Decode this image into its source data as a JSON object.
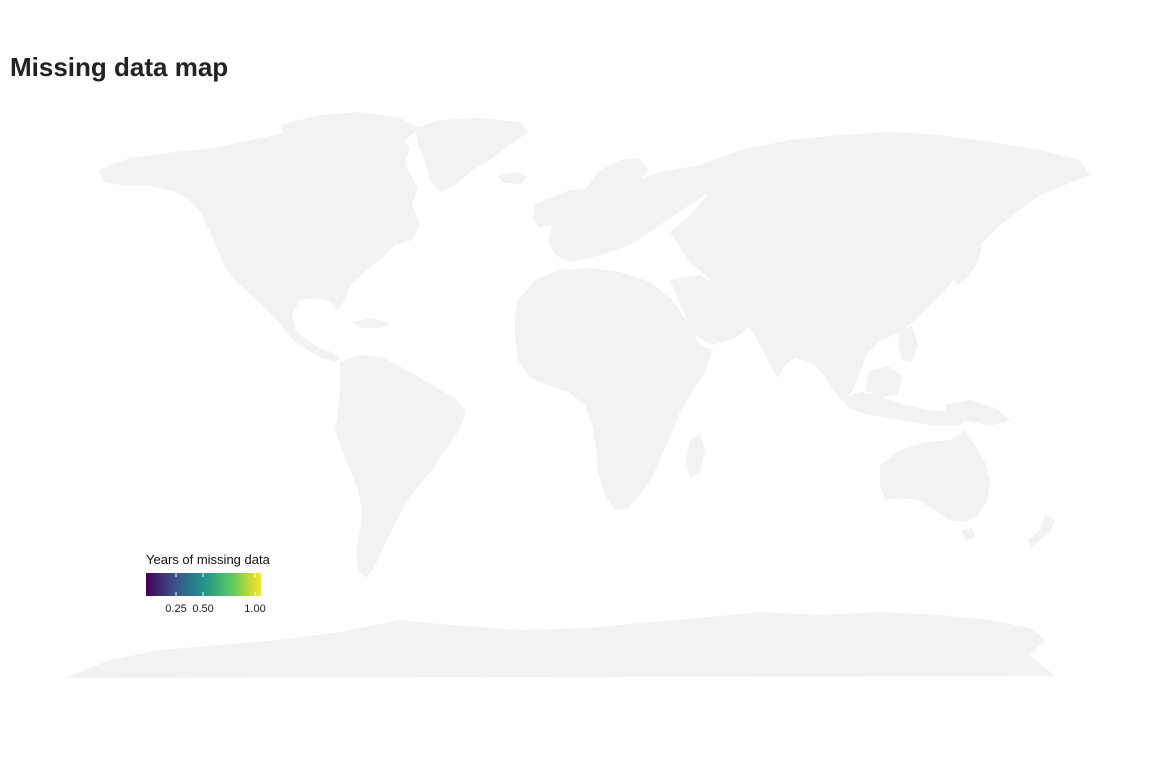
{
  "title": "Missing data map",
  "map": {
    "land_color": "#f2f2f2",
    "background_color": "#ffffff"
  },
  "legend": {
    "title": "Years of missing data",
    "scale": "viridis",
    "min": 0.0,
    "max": 1.0,
    "colors": [
      "#440154",
      "#3b528b",
      "#21918c",
      "#5ec962",
      "#fde725"
    ],
    "ticks": [
      {
        "value": 0.25,
        "label": "0.25"
      },
      {
        "value": 0.5,
        "label": "0.50"
      },
      {
        "value": 1.0,
        "label": "1.00"
      }
    ]
  }
}
